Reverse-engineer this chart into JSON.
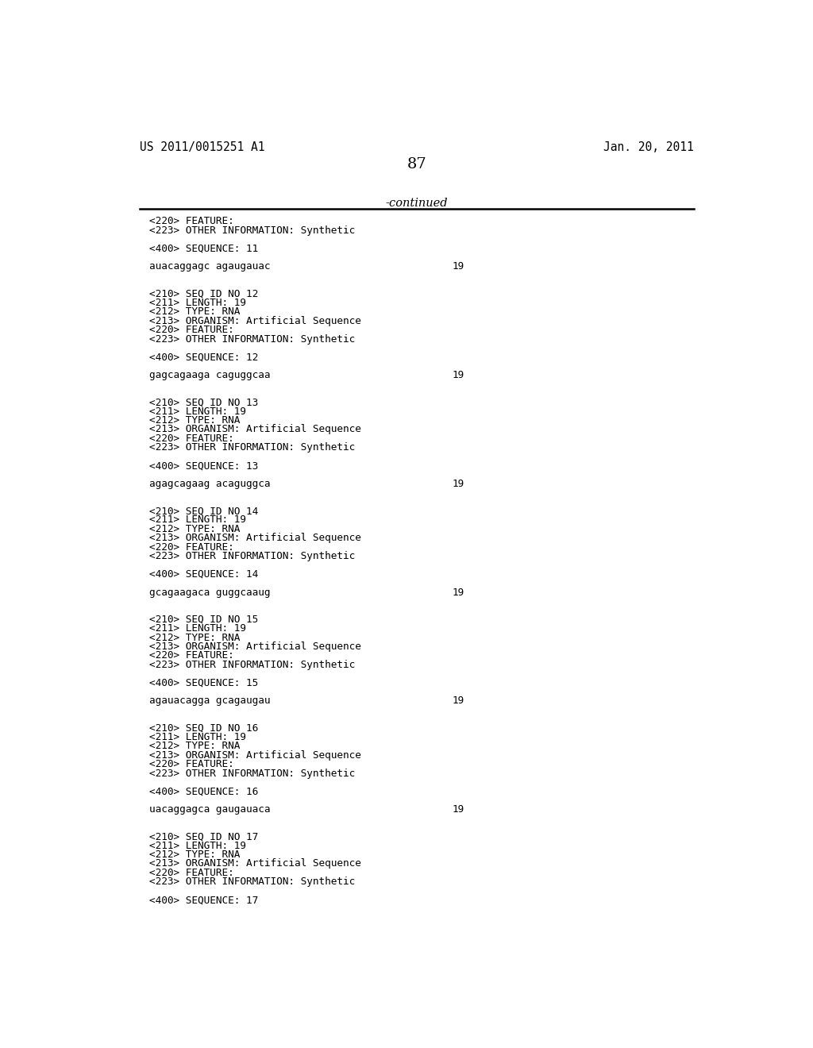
{
  "patent_number": "US 2011/0015251 A1",
  "date": "Jan. 20, 2011",
  "page_number": "87",
  "continued_label": "-continued",
  "background_color": "#ffffff",
  "text_color": "#000000",
  "content_blocks": [
    {
      "type": "meta",
      "lines": [
        "<220> FEATURE:",
        "<223> OTHER INFORMATION: Synthetic"
      ]
    },
    {
      "type": "blank"
    },
    {
      "type": "meta",
      "lines": [
        "<400> SEQUENCE: 11"
      ]
    },
    {
      "type": "blank"
    },
    {
      "type": "sequence",
      "seq": "auacaggagc agaugauac",
      "num": "19"
    },
    {
      "type": "blank"
    },
    {
      "type": "blank"
    },
    {
      "type": "meta",
      "lines": [
        "<210> SEQ ID NO 12",
        "<211> LENGTH: 19",
        "<212> TYPE: RNA",
        "<213> ORGANISM: Artificial Sequence",
        "<220> FEATURE:",
        "<223> OTHER INFORMATION: Synthetic"
      ]
    },
    {
      "type": "blank"
    },
    {
      "type": "meta",
      "lines": [
        "<400> SEQUENCE: 12"
      ]
    },
    {
      "type": "blank"
    },
    {
      "type": "sequence",
      "seq": "gagcagaaga caguggcaa",
      "num": "19"
    },
    {
      "type": "blank"
    },
    {
      "type": "blank"
    },
    {
      "type": "meta",
      "lines": [
        "<210> SEQ ID NO 13",
        "<211> LENGTH: 19",
        "<212> TYPE: RNA",
        "<213> ORGANISM: Artificial Sequence",
        "<220> FEATURE:",
        "<223> OTHER INFORMATION: Synthetic"
      ]
    },
    {
      "type": "blank"
    },
    {
      "type": "meta",
      "lines": [
        "<400> SEQUENCE: 13"
      ]
    },
    {
      "type": "blank"
    },
    {
      "type": "sequence",
      "seq": "agagcagaag acaguggca",
      "num": "19"
    },
    {
      "type": "blank"
    },
    {
      "type": "blank"
    },
    {
      "type": "meta",
      "lines": [
        "<210> SEQ ID NO 14",
        "<211> LENGTH: 19",
        "<212> TYPE: RNA",
        "<213> ORGANISM: Artificial Sequence",
        "<220> FEATURE:",
        "<223> OTHER INFORMATION: Synthetic"
      ]
    },
    {
      "type": "blank"
    },
    {
      "type": "meta",
      "lines": [
        "<400> SEQUENCE: 14"
      ]
    },
    {
      "type": "blank"
    },
    {
      "type": "sequence",
      "seq": "gcagaagaca guggcaaug",
      "num": "19"
    },
    {
      "type": "blank"
    },
    {
      "type": "blank"
    },
    {
      "type": "meta",
      "lines": [
        "<210> SEQ ID NO 15",
        "<211> LENGTH: 19",
        "<212> TYPE: RNA",
        "<213> ORGANISM: Artificial Sequence",
        "<220> FEATURE:",
        "<223> OTHER INFORMATION: Synthetic"
      ]
    },
    {
      "type": "blank"
    },
    {
      "type": "meta",
      "lines": [
        "<400> SEQUENCE: 15"
      ]
    },
    {
      "type": "blank"
    },
    {
      "type": "sequence",
      "seq": "agauacagga gcagaugau",
      "num": "19"
    },
    {
      "type": "blank"
    },
    {
      "type": "blank"
    },
    {
      "type": "meta",
      "lines": [
        "<210> SEQ ID NO 16",
        "<211> LENGTH: 19",
        "<212> TYPE: RNA",
        "<213> ORGANISM: Artificial Sequence",
        "<220> FEATURE:",
        "<223> OTHER INFORMATION: Synthetic"
      ]
    },
    {
      "type": "blank"
    },
    {
      "type": "meta",
      "lines": [
        "<400> SEQUENCE: 16"
      ]
    },
    {
      "type": "blank"
    },
    {
      "type": "sequence",
      "seq": "uacaggagca gaugauaca",
      "num": "19"
    },
    {
      "type": "blank"
    },
    {
      "type": "blank"
    },
    {
      "type": "meta",
      "lines": [
        "<210> SEQ ID NO 17",
        "<211> LENGTH: 19",
        "<212> TYPE: RNA",
        "<213> ORGANISM: Artificial Sequence",
        "<220> FEATURE:",
        "<223> OTHER INFORMATION: Synthetic"
      ]
    },
    {
      "type": "blank"
    },
    {
      "type": "meta",
      "lines": [
        "<400> SEQUENCE: 17"
      ]
    }
  ]
}
